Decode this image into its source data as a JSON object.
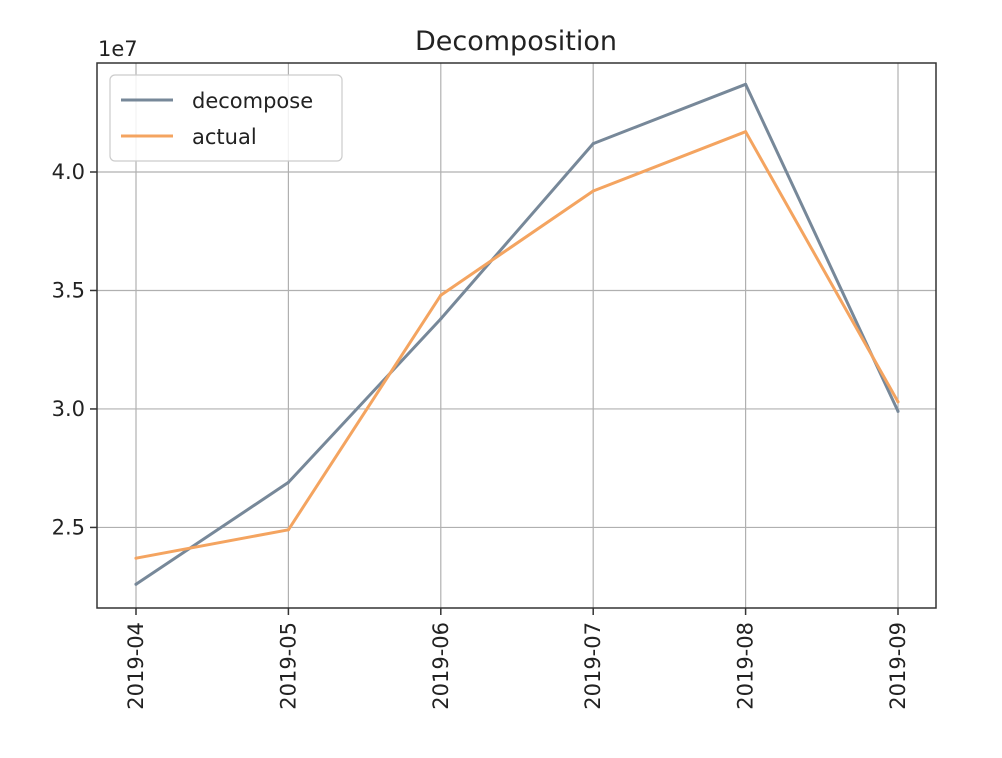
{
  "chart_data": {
    "type": "line",
    "title": "Decomposition",
    "xlabel": "",
    "ylabel": "",
    "y_offset_label": "1e7",
    "x": [
      "2019-04",
      "2019-05",
      "2019-06",
      "2019-07",
      "2019-08",
      "2019-09"
    ],
    "y_ticks": [
      2.5,
      3.0,
      3.5,
      4.0
    ],
    "y_tick_labels": [
      "2.5",
      "3.0",
      "3.5",
      "4.0"
    ],
    "ylim": [
      2.16,
      4.46
    ],
    "grid": true,
    "legend_position": "upper-left",
    "series": [
      {
        "name": "decompose",
        "color": "#778899",
        "values": [
          2.26,
          2.69,
          3.38,
          4.12,
          4.37,
          2.99
        ]
      },
      {
        "name": "actual",
        "color": "#f4a460",
        "values": [
          2.37,
          2.49,
          3.48,
          3.92,
          4.17,
          3.03
        ]
      }
    ]
  }
}
